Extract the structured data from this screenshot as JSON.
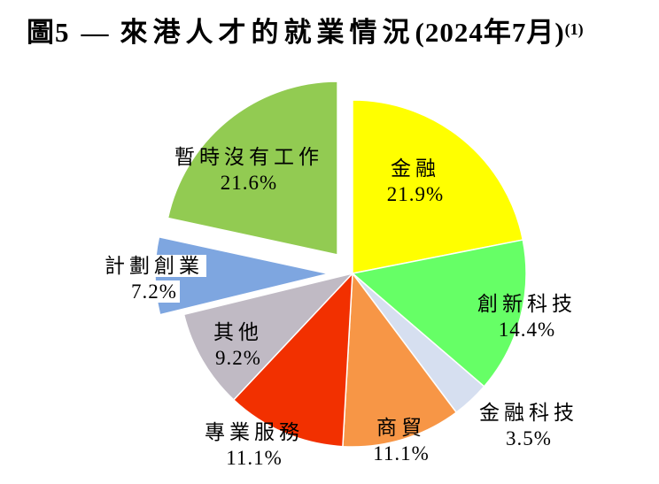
{
  "title": {
    "prefix": "圖5",
    "dash": "—",
    "main": "來港人才的就業情況",
    "paren": "(2024年7月)",
    "superscript": "(1)"
  },
  "chart_data": {
    "type": "pie",
    "title": "來港人才的就業情況 (2024年7月)",
    "unit": "percent",
    "start_angle_deg": 0,
    "direction": "clockwise",
    "legend": "none",
    "label_format": "category name above percentage value",
    "categories": [
      "金融",
      "創新科技",
      "金融科技",
      "商貿",
      "專業服務",
      "其他",
      "計劃創業",
      "暫時沒有工作"
    ],
    "values": [
      21.9,
      14.4,
      3.5,
      11.1,
      11.1,
      9.2,
      7.2,
      21.6
    ],
    "slices": [
      {
        "label": "金融",
        "value": 21.9,
        "color": "#FFFF00",
        "exploded": false
      },
      {
        "label": "創新科技",
        "value": 14.4,
        "color": "#66FF66",
        "exploded": false
      },
      {
        "label": "金融科技",
        "value": 3.5,
        "color": "#D6DFF0",
        "exploded": false
      },
      {
        "label": "商貿",
        "value": 11.1,
        "color": "#F79646",
        "exploded": false
      },
      {
        "label": "專業服務",
        "value": 11.1,
        "color": "#F23000",
        "exploded": false
      },
      {
        "label": "其他",
        "value": 9.2,
        "color": "#C0BAC4",
        "exploded": false
      },
      {
        "label": "計劃創業",
        "value": 7.2,
        "color": "#7EA6E0",
        "exploded": true
      },
      {
        "label": "暫時沒有工作",
        "value": 21.6,
        "color": "#92CB52",
        "exploded": true
      }
    ]
  }
}
